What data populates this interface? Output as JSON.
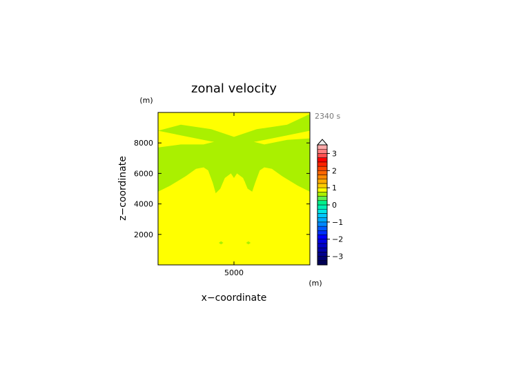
{
  "chart_data": {
    "type": "heatmap",
    "title": "zonal velocity",
    "xlabel": "x−coordinate",
    "ylabel": "z−coordinate",
    "x_unit": "(m)",
    "y_unit": "(m)",
    "time_label": "2340 s",
    "xlim": [
      0,
      10000
    ],
    "ylim": [
      0,
      10000
    ],
    "x_ticks": [
      {
        "value": 5000,
        "label": "5000"
      }
    ],
    "y_ticks": [
      {
        "value": 2000,
        "label": "2000"
      },
      {
        "value": 4000,
        "label": "4000"
      },
      {
        "value": 6000,
        "label": "6000"
      },
      {
        "value": 8000,
        "label": "8000"
      }
    ],
    "colorbar": {
      "min": -3.5,
      "max": 3.5,
      "step": 0.25,
      "labels": [
        {
          "value": 3,
          "label": "3"
        },
        {
          "value": 2,
          "label": "2"
        },
        {
          "value": 1,
          "label": "1"
        },
        {
          "value": 0,
          "label": "0"
        },
        {
          "value": -1,
          "label": "−1"
        },
        {
          "value": -2,
          "label": "−2"
        },
        {
          "value": -3,
          "label": "−3"
        }
      ],
      "extend_max": true
    },
    "background_band": {
      "range": [
        0,
        0.25
      ],
      "color": "#ffff00"
    },
    "regions": [
      {
        "band": [
          -0.25,
          0
        ],
        "color": "#aaf000",
        "points": [
          [
            0,
            8800
          ],
          [
            1500,
            9200
          ],
          [
            3500,
            8900
          ],
          [
            5000,
            8400
          ],
          [
            6500,
            8900
          ],
          [
            8500,
            9200
          ],
          [
            10000,
            9900
          ],
          [
            10000,
            8800
          ],
          [
            8500,
            8500
          ],
          [
            6500,
            8100
          ],
          [
            5000,
            7900
          ],
          [
            3500,
            8100
          ],
          [
            1500,
            8500
          ],
          [
            0,
            8800
          ]
        ]
      },
      {
        "band": [
          -0.25,
          0
        ],
        "color": "#aaf000",
        "points": [
          [
            0,
            7700
          ],
          [
            1500,
            7900
          ],
          [
            3000,
            7900
          ],
          [
            4200,
            8200
          ],
          [
            5000,
            8050
          ],
          [
            5800,
            8200
          ],
          [
            7000,
            7900
          ],
          [
            8500,
            8200
          ],
          [
            10000,
            8300
          ],
          [
            10000,
            4800
          ],
          [
            9200,
            5200
          ],
          [
            8200,
            5800
          ],
          [
            7500,
            6300
          ],
          [
            7000,
            6400
          ],
          [
            6700,
            6200
          ],
          [
            6400,
            5400
          ],
          [
            6200,
            4800
          ],
          [
            5900,
            5000
          ],
          [
            5600,
            5700
          ],
          [
            5200,
            6000
          ],
          [
            5000,
            5700
          ],
          [
            4800,
            6000
          ],
          [
            4400,
            5700
          ],
          [
            4100,
            5000
          ],
          [
            3800,
            4700
          ],
          [
            3600,
            5400
          ],
          [
            3300,
            6200
          ],
          [
            3000,
            6400
          ],
          [
            2500,
            6300
          ],
          [
            1800,
            5800
          ],
          [
            800,
            5200
          ],
          [
            0,
            4800
          ]
        ]
      },
      {
        "band": [
          0,
          0.25
        ],
        "color": "#ffff00",
        "points": [
          [
            4500,
            5200
          ],
          [
            4650,
            4950
          ],
          [
            4800,
            5200
          ],
          [
            4700,
            5500
          ]
        ]
      },
      {
        "band": [
          0,
          0.25
        ],
        "color": "#ffff00",
        "points": [
          [
            5500,
            5200
          ],
          [
            5650,
            4950
          ],
          [
            5800,
            5200
          ],
          [
            5700,
            5500
          ]
        ]
      },
      {
        "band": [
          -0.25,
          0
        ],
        "color": "#aaf000",
        "points": [
          [
            4000,
            1450
          ],
          [
            4150,
            1350
          ],
          [
            4300,
            1450
          ],
          [
            4150,
            1550
          ]
        ]
      },
      {
        "band": [
          -0.25,
          0
        ],
        "color": "#aaf000",
        "points": [
          [
            5800,
            1450
          ],
          [
            5950,
            1350
          ],
          [
            6100,
            1450
          ],
          [
            5950,
            1550
          ]
        ]
      }
    ]
  },
  "colors": {
    "axes": "#000000",
    "time_label": "#777777",
    "palette": [
      "#000055",
      "#000070",
      "#00008c",
      "#0000aa",
      "#0000c6",
      "#0000e0",
      "#0000ff",
      "#0030ff",
      "#005aff",
      "#0088ff",
      "#00aaff",
      "#00c8ff",
      "#00e6e6",
      "#00f0b4",
      "#00f08c",
      "#60f050",
      "#aaf000",
      "#ffff00",
      "#ffcc00",
      "#ffaa00",
      "#ff8800",
      "#ff6600",
      "#ff4400",
      "#ff2200",
      "#ff0000",
      "#ff5050",
      "#ff8080",
      "#ffaaaa"
    ]
  }
}
